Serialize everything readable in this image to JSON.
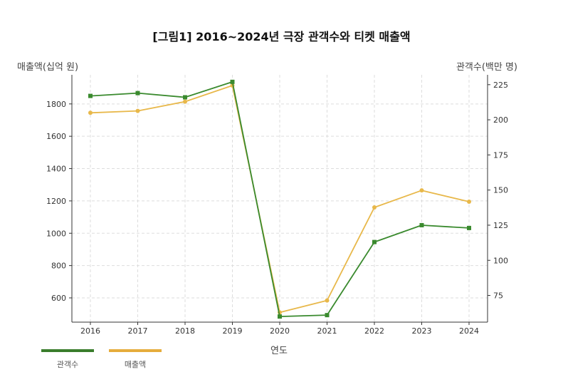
{
  "figure_title": "[그림1] 2016~2024년 극장 관객수와 티켓 매출액",
  "chart_data": {
    "type": "line",
    "title": "[그림1] 2016~2024년 극장 관객수와 티켓 매출액",
    "xlabel": "연도",
    "ylabel_left": "매출액(십억 원)",
    "ylabel_right": "관객수(백만 명)",
    "categories": [
      "2016",
      "2017",
      "2018",
      "2019",
      "2020",
      "2021",
      "2022",
      "2023",
      "2024"
    ],
    "ylim_left": [
      450,
      1980
    ],
    "ylim_right": [
      56,
      232
    ],
    "left_ticks": [
      "600",
      "800",
      "1000",
      "1200",
      "1400",
      "1600",
      "1800"
    ],
    "right_ticks": [
      "75",
      "100",
      "125",
      "150",
      "175",
      "200",
      "225"
    ],
    "grid": true,
    "legend_position": "bottom-left",
    "series": [
      {
        "name": "관객수",
        "axis": "right",
        "color": "#3a8a2e",
        "marker": "square",
        "values": [
          217,
          219,
          216,
          227,
          60,
          61,
          113,
          125,
          123
        ]
      },
      {
        "name": "매출액",
        "axis": "left",
        "color": "#e8b84a",
        "marker": "circle",
        "values": [
          1745,
          1757,
          1814,
          1914,
          510,
          584,
          1160,
          1265,
          1195
        ]
      }
    ]
  }
}
